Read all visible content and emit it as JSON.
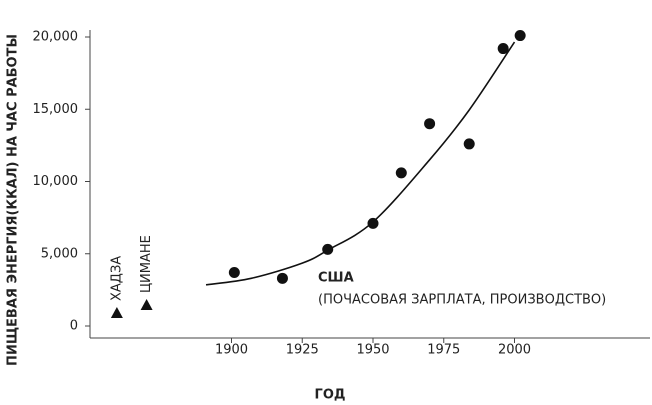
{
  "chart_data": {
    "type": "scatter",
    "xlabel": "ГОД",
    "ylabel": "ПИЩЕВАЯ ЭНЕРГИЯ(ККАЛ) НА ЧАС РАБОТЫ",
    "xlim": [
      1850,
      2050
    ],
    "ylim": [
      0,
      20000
    ],
    "xticks": [
      1900,
      1925,
      1950,
      1975,
      2000
    ],
    "yticks": [
      0,
      {
        "value": 5000,
        "label": "5,000"
      },
      {
        "value": 10000,
        "label": "10,000"
      },
      {
        "value": 15000,
        "label": "15,000"
      },
      {
        "value": 20000,
        "label": "20,000"
      }
    ],
    "color": "#111111",
    "series": [
      {
        "name": "США",
        "marker": "circle",
        "x": [
          1901,
          1918,
          1934,
          1950,
          1960,
          1970,
          1984,
          1996,
          2002
        ],
        "values": [
          3700,
          3300,
          5300,
          7100,
          10600,
          14000,
          12600,
          19200,
          20100
        ]
      },
      {
        "name": "ХАДЗА",
        "marker": "triangle",
        "x": [
          1859.5
        ],
        "values": [
          900
        ]
      },
      {
        "name": "ЦИМАНЕ",
        "marker": "triangle",
        "x": [
          1870
        ],
        "values": [
          1450
        ]
      }
    ],
    "annotation": "(ПОЧАСОВАЯ ЗАРПЛАТА, ПРОИЗВОДСТВО)",
    "trend": {
      "x": [
        1891,
        1907,
        1925,
        1934,
        1950,
        1970,
        1984,
        2000
      ],
      "values": [
        2850,
        3300,
        4350,
        5250,
        7200,
        11500,
        14950,
        19650
      ]
    }
  }
}
